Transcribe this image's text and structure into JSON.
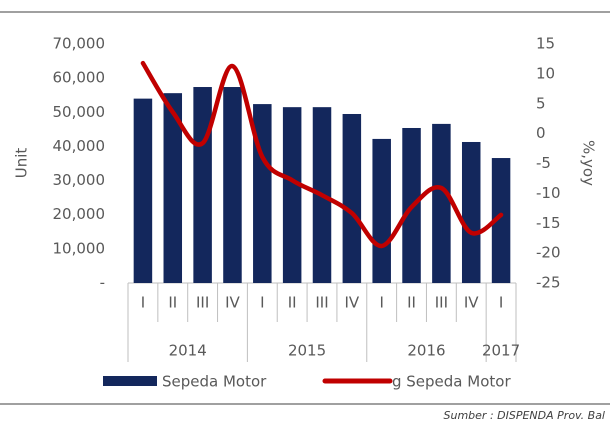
{
  "chart_data": {
    "type": "bar",
    "groups": [
      {
        "label": "2014",
        "categories": [
          "I",
          "II",
          "III",
          "IV"
        ]
      },
      {
        "label": "2015",
        "categories": [
          "I",
          "II",
          "III",
          "IV"
        ]
      },
      {
        "label": "2016",
        "categories": [
          "I",
          "II",
          "III",
          "IV"
        ]
      },
      {
        "label": "2017",
        "categories": [
          "I"
        ]
      }
    ],
    "series": [
      {
        "name": "Sepeda Motor",
        "type": "bar",
        "color": "#13275c",
        "values": [
          54000,
          55600,
          57400,
          57400,
          52400,
          51500,
          51500,
          49500,
          42200,
          45400,
          46600,
          41300,
          36600
        ]
      },
      {
        "name": "g Sepeda Motor",
        "type": "line",
        "axis": "y2",
        "color": "#c00000",
        "values": [
          11.8,
          3.6,
          -1.6,
          11.3,
          -3.9,
          -7.8,
          -10.3,
          -13.3,
          -18.8,
          -12.3,
          -9.1,
          -16.6,
          -13.6
        ]
      }
    ],
    "ylabel": "Unit",
    "y2label": "%,yoy",
    "ylim": [
      0,
      70000
    ],
    "yticks": [
      {
        "value": 0,
        "label": "-"
      },
      {
        "value": 10000,
        "label": "10,000"
      },
      {
        "value": 20000,
        "label": "20,000"
      },
      {
        "value": 30000,
        "label": "30,000"
      },
      {
        "value": 40000,
        "label": "40,000"
      },
      {
        "value": 50000,
        "label": "50,000"
      },
      {
        "value": 60000,
        "label": "60,000"
      },
      {
        "value": 70000,
        "label": "70,000"
      }
    ],
    "y2lim": [
      -25,
      15
    ],
    "y2ticks": [
      15,
      10,
      5,
      0,
      -5,
      -10,
      -15,
      -20,
      -25
    ],
    "grid": false,
    "legend": "bottom",
    "source": "Sumber : DISPENDA Prov. Bal"
  }
}
